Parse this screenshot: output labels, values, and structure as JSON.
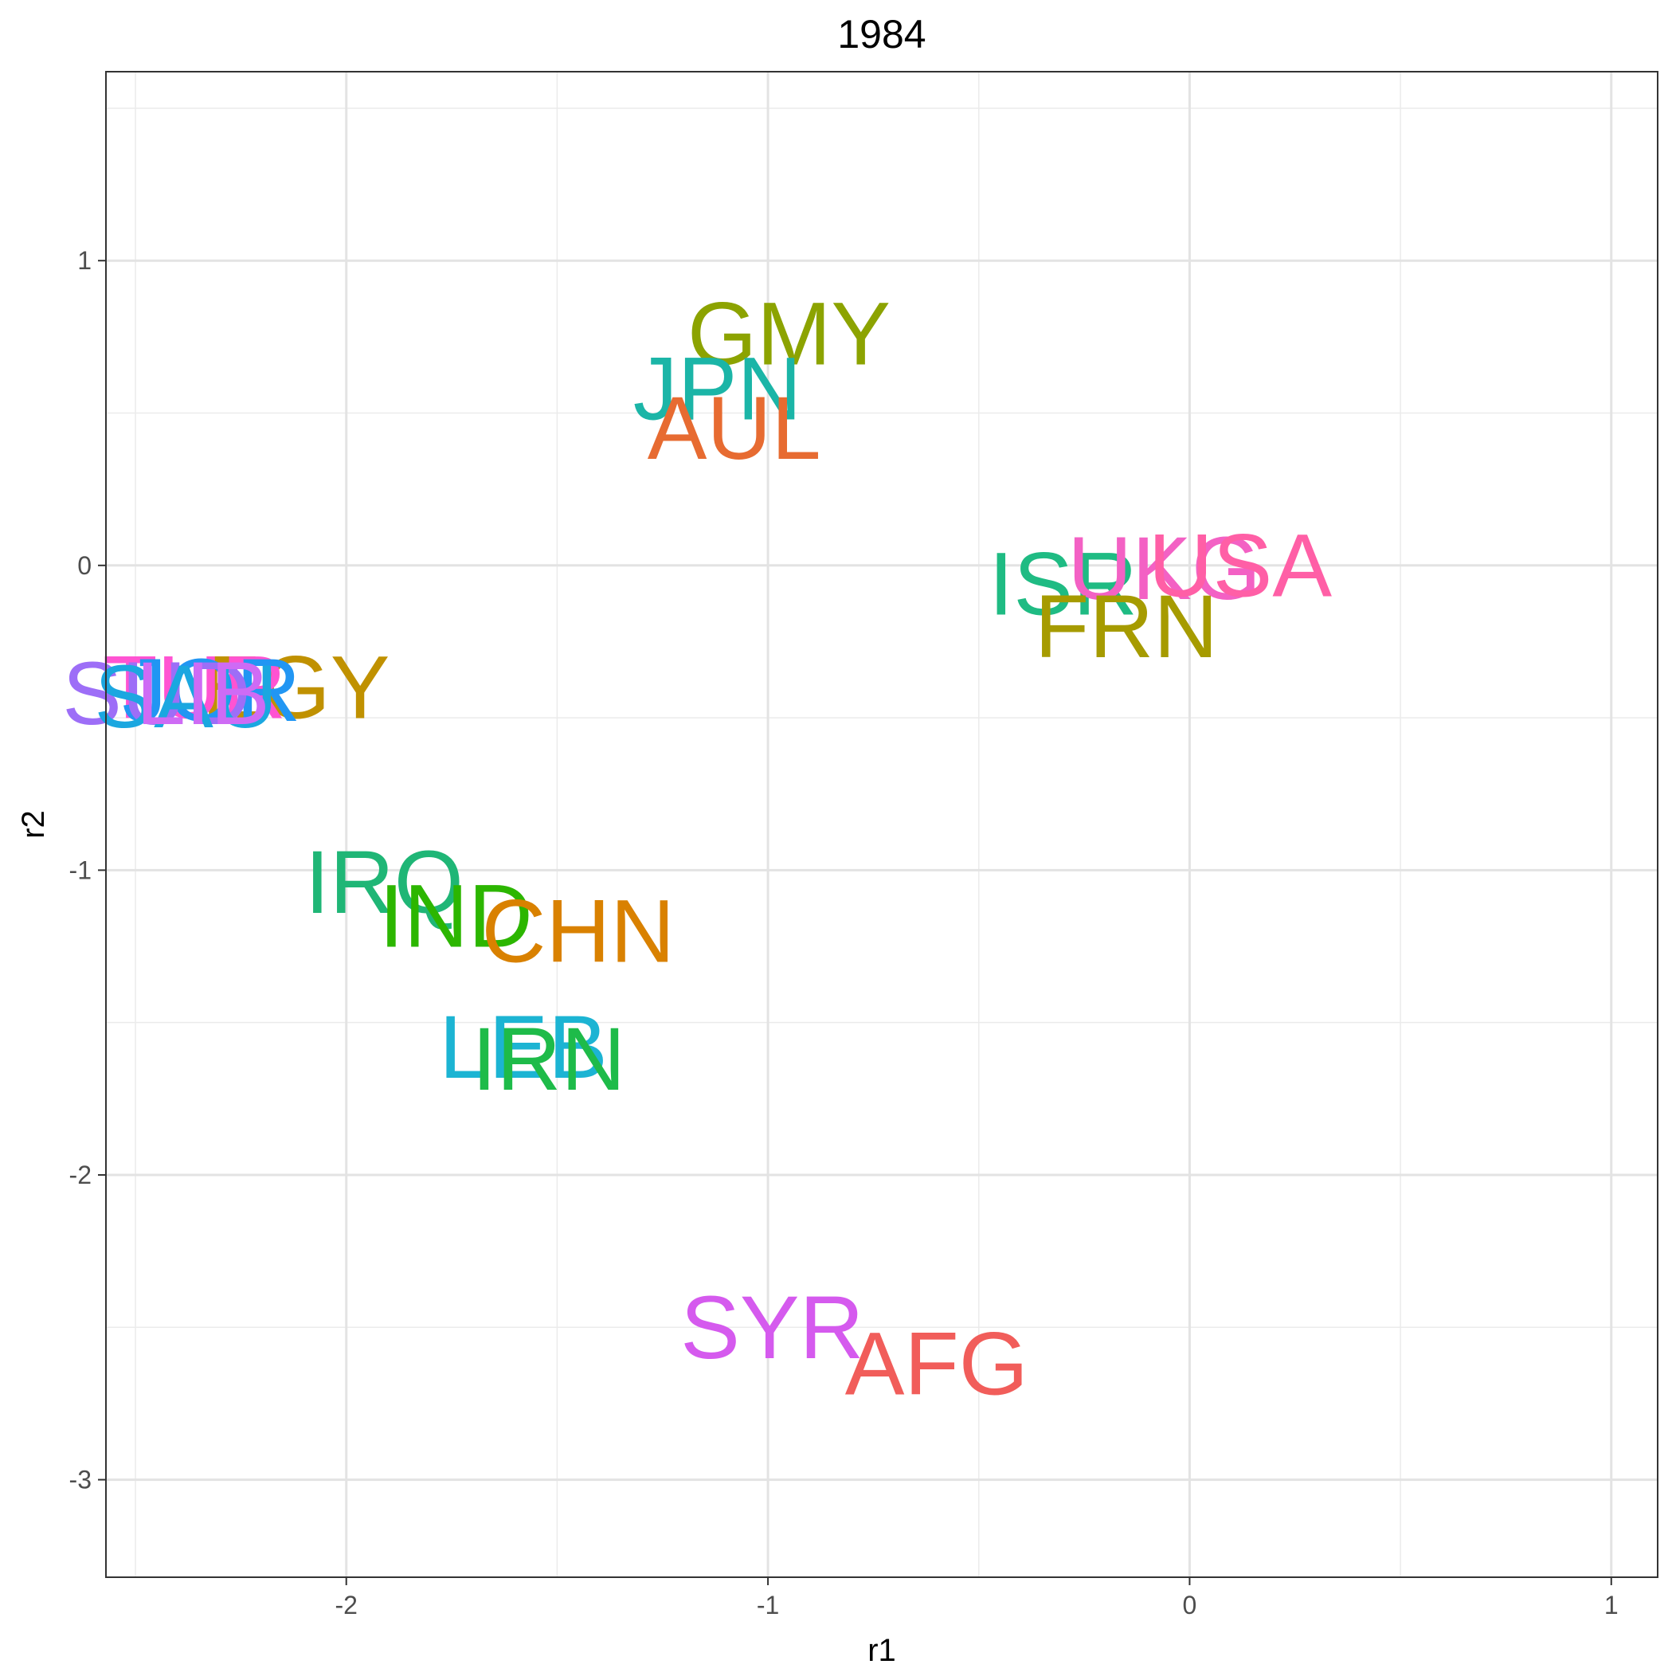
{
  "chart_data": {
    "type": "scatter",
    "title": "1984",
    "xlabel": "r1",
    "ylabel": "r2",
    "xlim": [
      -2.57,
      1.11
    ],
    "ylim": [
      -3.32,
      1.62
    ],
    "x_ticks": [
      -2,
      -1,
      0,
      1
    ],
    "x_tick_labels": [
      "-2",
      "-1",
      "0",
      "1"
    ],
    "y_ticks": [
      1,
      0,
      -1,
      -2,
      -3
    ],
    "y_tick_labels": [
      "1",
      "0",
      "-1",
      "-2",
      "-3"
    ],
    "grid": true,
    "legend": "none",
    "points": [
      {
        "label": "GMY",
        "x": -0.95,
        "y": 0.76,
        "color": "#8CA300"
      },
      {
        "label": "JPN",
        "x": -1.12,
        "y": 0.58,
        "color": "#1BB5A7"
      },
      {
        "label": "AUL",
        "x": -1.08,
        "y": 0.45,
        "color": "#E76B31"
      },
      {
        "label": "ISR",
        "x": -0.3,
        "y": -0.06,
        "color": "#1FBB83"
      },
      {
        "label": "UKG",
        "x": -0.06,
        "y": -0.01,
        "color": "#F361C4"
      },
      {
        "label": "USA",
        "x": 0.12,
        "y": 0.0,
        "color": "#FF5FA6"
      },
      {
        "label": "FRN",
        "x": -0.15,
        "y": -0.2,
        "color": "#A69B00"
      },
      {
        "label": "EGY",
        "x": -2.12,
        "y": -0.4,
        "color": "#C09100"
      },
      {
        "label": "TUR",
        "x": -2.36,
        "y": -0.4,
        "color": "#FF53D2"
      },
      {
        "label": "JOR",
        "x": -2.32,
        "y": -0.41,
        "color": "#2196F3"
      },
      {
        "label": "SUD",
        "x": -2.45,
        "y": -0.42,
        "color": "#9D6EF7"
      },
      {
        "label": "SAU",
        "x": -2.38,
        "y": -0.43,
        "color": "#1BA7E0"
      },
      {
        "label": "LIB",
        "x": -2.34,
        "y": -0.42,
        "color": "#CE6BF5"
      },
      {
        "label": "IRQ",
        "x": -1.91,
        "y": -1.04,
        "color": "#1FB676"
      },
      {
        "label": "IND",
        "x": -1.74,
        "y": -1.15,
        "color": "#2CB600"
      },
      {
        "label": "CHN",
        "x": -1.45,
        "y": -1.2,
        "color": "#D98100"
      },
      {
        "label": "LEB",
        "x": -1.58,
        "y": -1.58,
        "color": "#1CB4D3"
      },
      {
        "label": "IRN",
        "x": -1.52,
        "y": -1.62,
        "color": "#1EBB49"
      },
      {
        "label": "SYR",
        "x": -0.99,
        "y": -2.5,
        "color": "#D55AEE"
      },
      {
        "label": "AFG",
        "x": -0.6,
        "y": -2.62,
        "color": "#F15D5A"
      }
    ]
  }
}
